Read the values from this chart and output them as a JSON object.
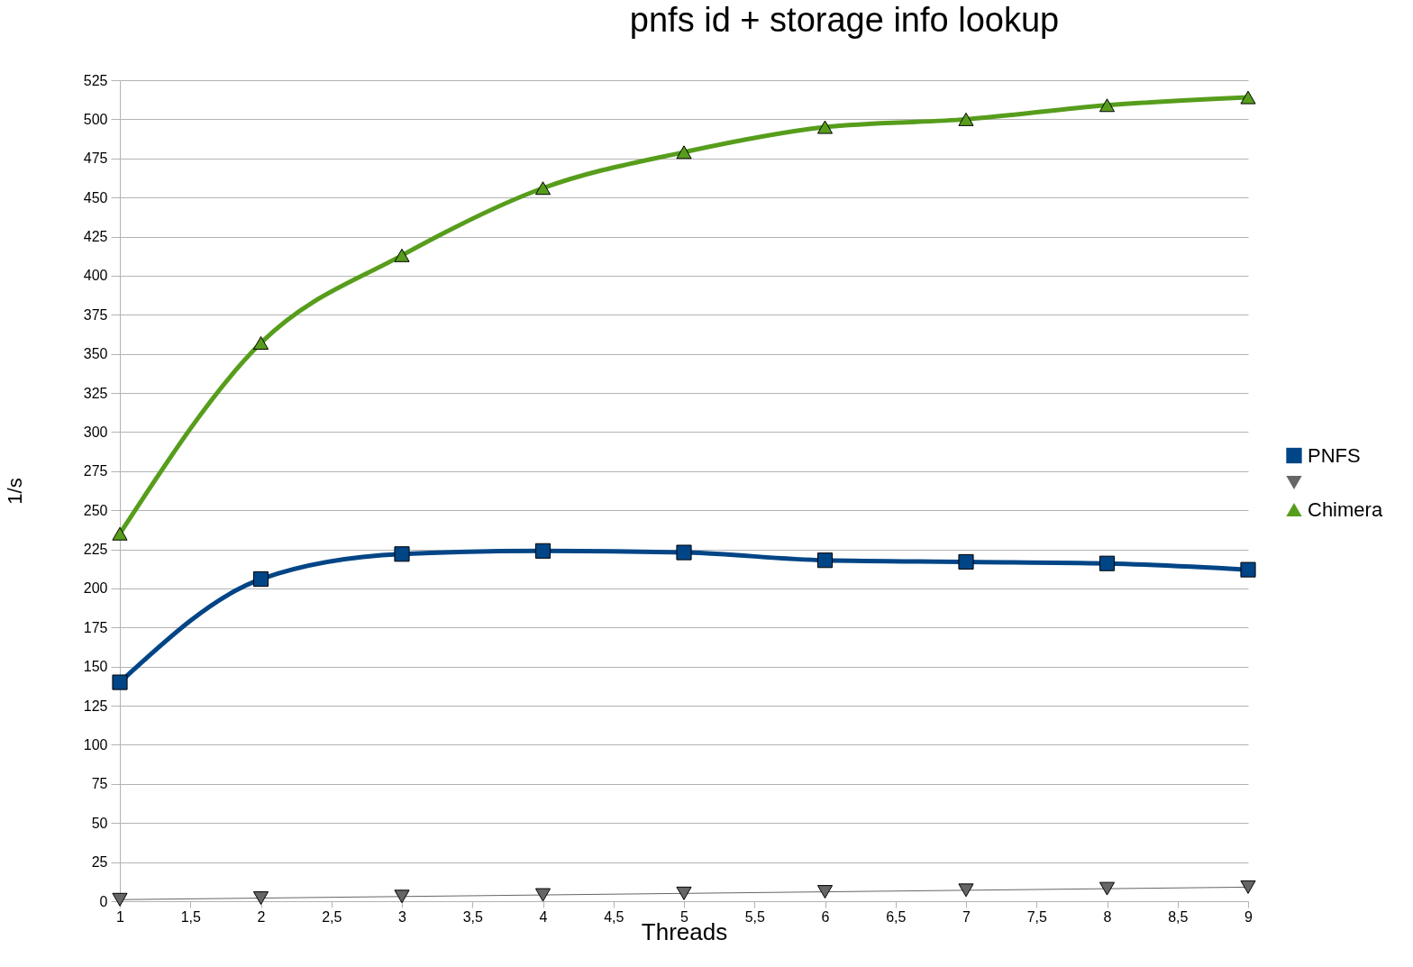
{
  "chart_data": {
    "type": "line",
    "title": "pnfs id + storage info lookup",
    "xlabel": "Threads",
    "ylabel": "1/s",
    "x": [
      1,
      2,
      3,
      4,
      5,
      6,
      7,
      8,
      9
    ],
    "series": [
      {
        "name": "PNFS",
        "color": "#004586",
        "marker": "square",
        "values": [
          140,
          206,
          222,
          224,
          223,
          218,
          217,
          216,
          212
        ]
      },
      {
        "color": "#666666",
        "marker": "triangle-down",
        "values": [
          1,
          2,
          3,
          4,
          5,
          6,
          7,
          8,
          9
        ]
      },
      {
        "name": "Chimera",
        "color": "#579d1c",
        "marker": "triangle",
        "values": [
          235,
          357,
          413,
          456,
          479,
          495,
          500,
          509,
          514
        ]
      }
    ],
    "xlim": [
      1,
      9
    ],
    "xticks": [
      1,
      {
        "value": 1.5,
        "label": "1,5"
      },
      2,
      {
        "value": 2.5,
        "label": "2,5"
      },
      3,
      {
        "value": 3.5,
        "label": "3,5"
      },
      4,
      {
        "value": 4.5,
        "label": "4,5"
      },
      5,
      {
        "value": 5.5,
        "label": "5,5"
      },
      6,
      {
        "value": 6.5,
        "label": "6,5"
      },
      7,
      {
        "value": 7.5,
        "label": "7,5"
      },
      8,
      {
        "value": 8.5,
        "label": "8,5"
      },
      9
    ],
    "ylim": [
      0,
      525
    ],
    "yticks": [
      0,
      25,
      50,
      75,
      100,
      125,
      150,
      175,
      200,
      225,
      250,
      275,
      300,
      325,
      350,
      375,
      400,
      425,
      450,
      475,
      500,
      525
    ],
    "grid": "y",
    "legend": "right"
  }
}
